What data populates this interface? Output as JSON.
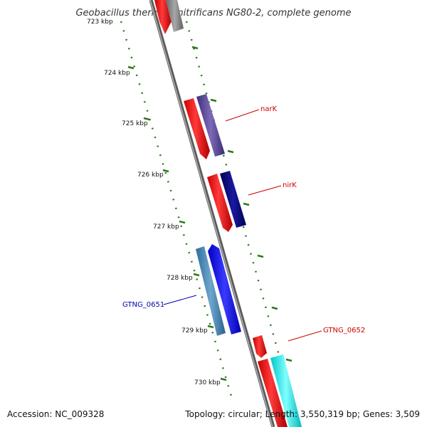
{
  "title": "Geobacillus thermodenitrificans NG80-2, complete genome",
  "footer": {
    "accession": "Accession: NC_009328",
    "summary": "Topology: circular; Length: 3,550,319 bp; Genes: 3,509"
  },
  "colors": {
    "backbone": "#888888",
    "tick": "#2a7a1a",
    "forward": "#ff0000",
    "label_red": "#d00000",
    "label_blue": "#0000b0"
  },
  "ticks": [
    {
      "label": "723 kbp",
      "kbp": 723
    },
    {
      "label": "724 kbp",
      "kbp": 724
    },
    {
      "label": "725 kbp",
      "kbp": 725
    },
    {
      "label": "726 kbp",
      "kbp": 726
    },
    {
      "label": "727 kbp",
      "kbp": 727
    },
    {
      "label": "728 kbp",
      "kbp": 728
    },
    {
      "label": "729 kbp",
      "kbp": 729
    },
    {
      "label": "730 kbp",
      "kbp": 730
    }
  ],
  "genes": [
    {
      "name": "narK",
      "label_color": "#d00000"
    },
    {
      "name": "nirK",
      "label_color": "#d00000"
    },
    {
      "name": "GTNG_0651",
      "label_color": "#0000b0"
    },
    {
      "name": "GTNG_0652",
      "label_color": "#d00000"
    }
  ]
}
